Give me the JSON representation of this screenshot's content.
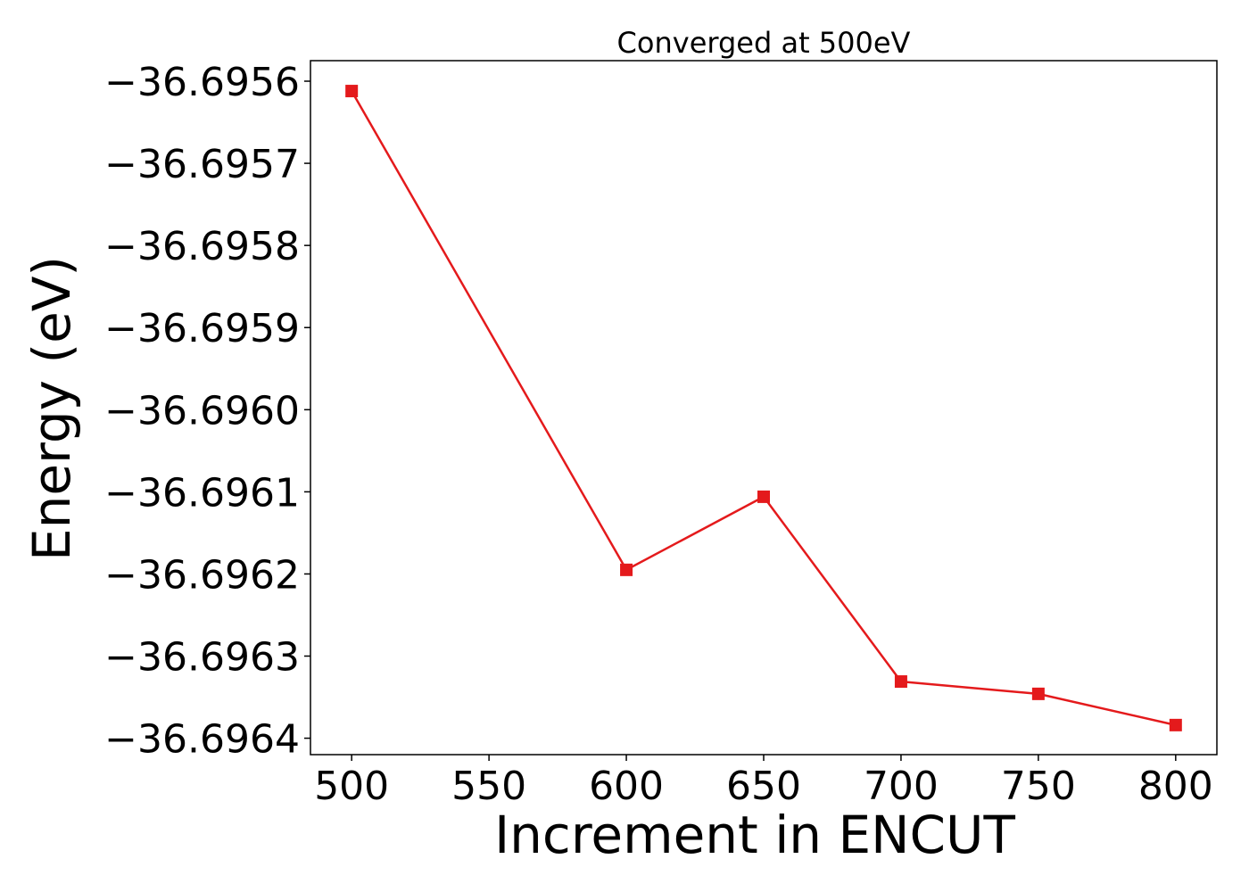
{
  "chart_data": {
    "type": "line",
    "title": "Converged at 500eV",
    "xlabel": "Increment in ENCUT",
    "ylabel": "Energy (eV)",
    "x": [
      500,
      600,
      650,
      700,
      750,
      800
    ],
    "series": [
      {
        "values": [
          -36.695612,
          -36.696195,
          -36.696106,
          -36.696331,
          -36.696346,
          -36.696384
        ],
        "color": "#e41a1c",
        "marker": "square"
      }
    ],
    "xlim": [
      485,
      815
    ],
    "ylim": [
      -36.69642,
      -36.695575
    ],
    "xticks": [
      500,
      550,
      600,
      650,
      700,
      750,
      800
    ],
    "xtick_labels": [
      "500",
      "550",
      "600",
      "650",
      "700",
      "750",
      "800"
    ],
    "yticks": [
      -36.6956,
      -36.6957,
      -36.6958,
      -36.6959,
      -36.696,
      -36.6961,
      -36.6962,
      -36.6963,
      -36.6964
    ],
    "ytick_labels": [
      "−36.6956",
      "−36.6957",
      "−36.6958",
      "−36.6959",
      "−36.6960",
      "−36.6961",
      "−36.6962",
      "−36.6963",
      "−36.6964"
    ],
    "grid": false,
    "legend": "none"
  }
}
